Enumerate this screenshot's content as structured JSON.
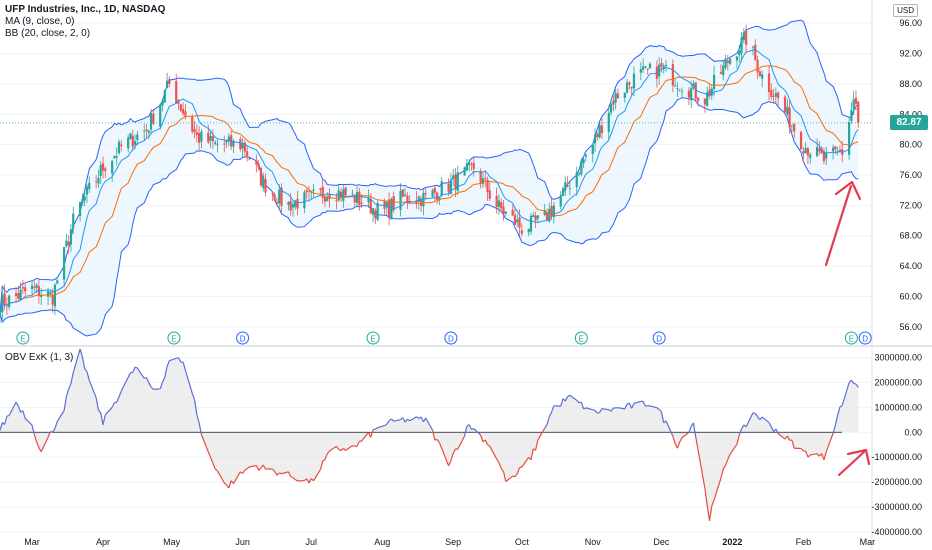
{
  "header": {
    "symbol": "UFP Industries, Inc., 1D, NASDAQ",
    "ma_label": "MA (9, close, 0)",
    "bb_label": "BB (20, close, 2, 0)",
    "obv_label": "OBV ExK (1, 3)",
    "currency": "USD",
    "last_price": "82.87"
  },
  "colors": {
    "up": "#26a69a",
    "down": "#ef5350",
    "ma": "#2196f3",
    "bb_basis": "#ff6d00",
    "bb_band": "#2962ff",
    "bb_fill": "#e3f2fd",
    "obv_pos": "#5b6fd6",
    "obv_neg": "#e74c3c",
    "annotation": "#e53950"
  },
  "chart_data": [
    {
      "type": "candlestick",
      "title": "UFP Industries, Inc., 1D, NASDAQ",
      "ylim": [
        54,
        98
      ],
      "yticks": [
        56,
        60,
        64,
        68,
        72,
        76,
        80,
        84,
        88,
        92,
        96
      ],
      "ytick_labels": [
        "56.00",
        "60.00",
        "64.00",
        "68.00",
        "72.00",
        "76.00",
        "80.00",
        "84.00",
        "88.00",
        "92.00",
        "96.00"
      ],
      "x_labels": [
        "Mar",
        "Apr",
        "May",
        "Jun",
        "Jul",
        "Aug",
        "Sep",
        "Oct",
        "Nov",
        "Dec",
        "2022",
        "Feb",
        "Mar"
      ],
      "close_anchors": [
        [
          "2021-02-15",
          59
        ],
        [
          "2021-03-01",
          61
        ],
        [
          "2021-03-10",
          60
        ],
        [
          "2021-03-20",
          71
        ],
        [
          "2021-04-01",
          77
        ],
        [
          "2021-04-10",
          80
        ],
        [
          "2021-04-20",
          82
        ],
        [
          "2021-04-30",
          88
        ],
        [
          "2021-05-05",
          85
        ],
        [
          "2021-05-12",
          81
        ],
        [
          "2021-05-20",
          80
        ],
        [
          "2021-06-01",
          80
        ],
        [
          "2021-06-10",
          75
        ],
        [
          "2021-06-20",
          72
        ],
        [
          "2021-07-01",
          73
        ],
        [
          "2021-07-10",
          74
        ],
        [
          "2021-07-20",
          73
        ],
        [
          "2021-08-01",
          71
        ],
        [
          "2021-08-10",
          73
        ],
        [
          "2021-08-20",
          73
        ],
        [
          "2021-09-01",
          75
        ],
        [
          "2021-09-10",
          77
        ],
        [
          "2021-09-20",
          72
        ],
        [
          "2021-10-01",
          69
        ],
        [
          "2021-10-10",
          70
        ],
        [
          "2021-10-20",
          74
        ],
        [
          "2021-11-01",
          80
        ],
        [
          "2021-11-10",
          86
        ],
        [
          "2021-11-20",
          89
        ],
        [
          "2021-12-01",
          90
        ],
        [
          "2021-12-10",
          88
        ],
        [
          "2021-12-20",
          86
        ],
        [
          "2022-01-01",
          92
        ],
        [
          "2022-01-07",
          94
        ],
        [
          "2022-01-14",
          89
        ],
        [
          "2022-01-21",
          86
        ],
        [
          "2022-02-01",
          80
        ],
        [
          "2022-02-10",
          78
        ],
        [
          "2022-02-18",
          79
        ],
        [
          "2022-02-23",
          86
        ],
        [
          "2022-02-27",
          82.87
        ]
      ],
      "last_close": 82.87,
      "event_markers": [
        {
          "date": "2021-02-25",
          "label": "E"
        },
        {
          "date": "2021-05-02",
          "label": "E"
        },
        {
          "date": "2021-06-01",
          "label": "D"
        },
        {
          "date": "2021-07-28",
          "label": "E"
        },
        {
          "date": "2021-08-31",
          "label": "D"
        },
        {
          "date": "2021-10-27",
          "label": "E"
        },
        {
          "date": "2021-11-30",
          "label": "D"
        },
        {
          "date": "2022-02-22",
          "label": "E"
        },
        {
          "date": "2022-02-28",
          "label": "D"
        }
      ],
      "overlays": [
        "MA (9, close, 0)",
        "BB (20, close, 2, 0)"
      ]
    },
    {
      "type": "area",
      "title": "OBV ExK (1, 3)",
      "ylim": [
        -4000000,
        3300000
      ],
      "yticks": [
        -4000000,
        -3000000,
        -2000000,
        -1000000,
        0,
        1000000,
        2000000,
        3000000
      ],
      "ytick_labels": [
        "-4000000.00",
        "-3000000.00",
        "-2000000.00",
        "-1000000.00",
        "0.00",
        "1000000.00",
        "2000000.00",
        "3000000.00"
      ],
      "anchors": [
        [
          "2021-02-15",
          100000
        ],
        [
          "2021-02-22",
          1200000
        ],
        [
          "2021-03-01",
          300000
        ],
        [
          "2021-03-05",
          -800000
        ],
        [
          "2021-03-15",
          1000000
        ],
        [
          "2021-03-22",
          3200000
        ],
        [
          "2021-04-01",
          400000
        ],
        [
          "2021-04-15",
          2600000
        ],
        [
          "2021-04-25",
          1500000
        ],
        [
          "2021-05-01",
          3200000
        ],
        [
          "2021-05-08",
          2500000
        ],
        [
          "2021-05-15",
          -500000
        ],
        [
          "2021-05-25",
          -2200000
        ],
        [
          "2021-06-05",
          -1300000
        ],
        [
          "2021-06-20",
          -1700000
        ],
        [
          "2021-07-01",
          -2000000
        ],
        [
          "2021-07-10",
          -700000
        ],
        [
          "2021-07-20",
          -600000
        ],
        [
          "2021-08-01",
          300000
        ],
        [
          "2021-08-10",
          500000
        ],
        [
          "2021-08-20",
          500000
        ],
        [
          "2021-08-30",
          -1200000
        ],
        [
          "2021-09-08",
          300000
        ],
        [
          "2021-09-18",
          -600000
        ],
        [
          "2021-09-25",
          -2100000
        ],
        [
          "2021-10-05",
          -1000000
        ],
        [
          "2021-10-15",
          1000000
        ],
        [
          "2021-10-22",
          1400000
        ],
        [
          "2021-11-01",
          800000
        ],
        [
          "2021-11-15",
          1000000
        ],
        [
          "2021-11-28",
          1200000
        ],
        [
          "2021-12-08",
          -500000
        ],
        [
          "2021-12-15",
          400000
        ],
        [
          "2021-12-22",
          -3400000
        ],
        [
          "2021-12-30",
          -1000000
        ],
        [
          "2022-01-10",
          800000
        ],
        [
          "2022-01-20",
          100000
        ],
        [
          "2022-02-01",
          -800000
        ],
        [
          "2022-02-10",
          -1000000
        ],
        [
          "2022-02-18",
          1200000
        ],
        [
          "2022-02-22",
          2100000
        ],
        [
          "2022-02-27",
          1700000
        ]
      ]
    }
  ]
}
